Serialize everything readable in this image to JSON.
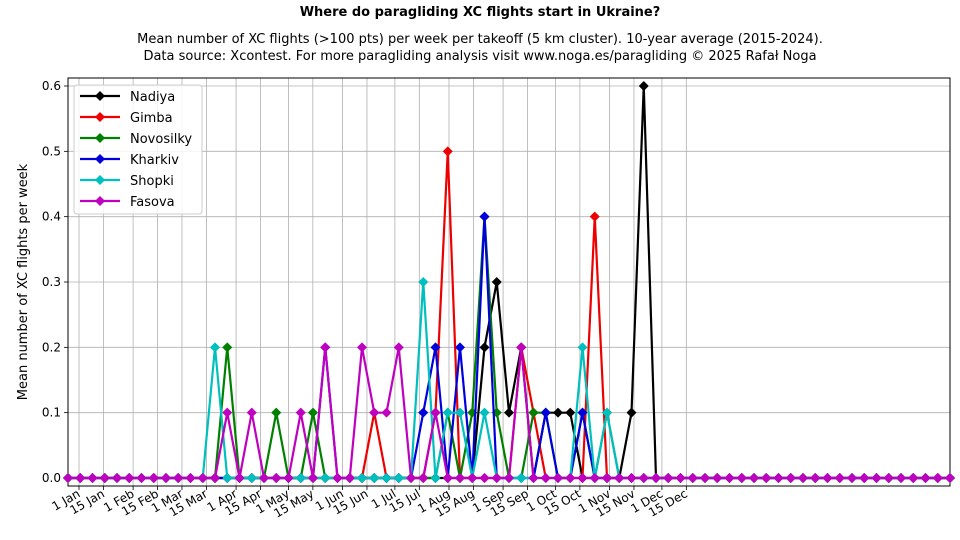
{
  "chart_data": {
    "type": "line",
    "title": "Where do paragliding XC flights start in Ukraine?",
    "subtitle_lines": [
      "Mean number of XC flights (>100 pts) per week per takeoff (5 km cluster). 10-year average (2015-2024).",
      "Data source: Xcontest. For more paragliding analysis visit www.noga.es/paragliding © 2025 Rafał Noga"
    ],
    "xlabel": "",
    "ylabel": "Mean number of XC flights per week",
    "x_tick_labels": [
      "1 Jan",
      "15 Jan",
      "1 Feb",
      "15 Feb",
      "1 Mar",
      "15 Mar",
      "1 Apr",
      "15 Apr",
      "1 May",
      "15 May",
      "1 Jun",
      "15 Jun",
      "1 Jul",
      "15 Jul",
      "1 Aug",
      "15 Aug",
      "1 Sep",
      "15 Sep",
      "1 Oct",
      "15 Oct",
      "1 Nov",
      "15 Nov",
      "1 Dec",
      "15 Dec"
    ],
    "y_tick_labels": [
      "0.0",
      "0.1",
      "0.2",
      "0.3",
      "0.4",
      "0.5",
      "0.6"
    ],
    "ylim": [
      0,
      0.6
    ],
    "grid": true,
    "legend_position": "top-left",
    "series": [
      {
        "name": "Nadiya",
        "color": "#000000",
        "values": [
          0,
          0,
          0,
          0,
          0,
          0,
          0,
          0,
          0,
          0,
          0,
          0,
          0,
          0,
          0,
          0,
          0,
          0,
          0,
          0,
          0,
          0,
          0,
          0,
          0,
          0,
          0,
          0,
          0,
          0,
          0,
          0,
          0,
          0,
          0.2,
          0.3,
          0.1,
          0.2,
          0,
          0.1,
          0.1,
          0.1,
          0,
          0,
          0,
          0,
          0.1,
          0.6,
          0,
          0,
          0,
          0,
          0,
          0,
          0,
          0,
          0,
          0,
          0,
          0,
          0,
          0,
          0,
          0,
          0,
          0,
          0,
          0,
          0,
          0,
          0,
          0,
          0
        ]
      },
      {
        "name": "Gimba",
        "color": "#ee0000",
        "values": [
          0,
          0,
          0,
          0,
          0,
          0,
          0,
          0,
          0,
          0,
          0,
          0,
          0,
          0,
          0,
          0,
          0,
          0,
          0,
          0,
          0,
          0,
          0,
          0,
          0,
          0.1,
          0,
          0,
          0,
          0,
          0.1,
          0.5,
          0,
          0,
          0,
          0,
          0,
          0.2,
          0.1,
          0,
          0,
          0,
          0,
          0.4,
          0,
          0,
          0,
          0,
          0,
          0,
          0,
          0,
          0,
          0,
          0,
          0,
          0,
          0,
          0,
          0,
          0,
          0,
          0,
          0,
          0,
          0,
          0,
          0,
          0,
          0,
          0,
          0,
          0
        ]
      },
      {
        "name": "Novosilky",
        "color": "#008000",
        "values": [
          0,
          0,
          0,
          0,
          0,
          0,
          0,
          0,
          0,
          0,
          0,
          0,
          0,
          0.2,
          0,
          0,
          0,
          0.1,
          0,
          0,
          0.1,
          0,
          0,
          0,
          0,
          0,
          0,
          0,
          0,
          0,
          0,
          0.1,
          0,
          0.1,
          0.4,
          0.1,
          0,
          0,
          0.1,
          0.1,
          0,
          0,
          0.1,
          0,
          0.1,
          0,
          0,
          0,
          0,
          0,
          0,
          0,
          0,
          0,
          0,
          0,
          0,
          0,
          0,
          0,
          0,
          0,
          0,
          0,
          0,
          0,
          0,
          0,
          0,
          0,
          0,
          0,
          0
        ]
      },
      {
        "name": "Kharkiv",
        "color": "#0000dd",
        "values": [
          0,
          0,
          0,
          0,
          0,
          0,
          0,
          0,
          0,
          0,
          0,
          0,
          0,
          0,
          0,
          0,
          0,
          0,
          0,
          0,
          0,
          0.2,
          0,
          0,
          0,
          0,
          0,
          0,
          0,
          0.1,
          0.2,
          0,
          0.2,
          0,
          0.4,
          0,
          0,
          0,
          0,
          0.1,
          0,
          0,
          0.1,
          0,
          0,
          0,
          0,
          0,
          0,
          0,
          0,
          0,
          0,
          0,
          0,
          0,
          0,
          0,
          0,
          0,
          0,
          0,
          0,
          0,
          0,
          0,
          0,
          0,
          0,
          0,
          0,
          0,
          0
        ]
      },
      {
        "name": "Shopki",
        "color": "#00bfbf",
        "values": [
          0,
          0,
          0,
          0,
          0,
          0,
          0,
          0,
          0,
          0,
          0,
          0,
          0.2,
          0,
          0,
          0,
          0,
          0,
          0,
          0,
          0,
          0,
          0,
          0,
          0,
          0,
          0,
          0,
          0,
          0.3,
          0,
          0.1,
          0.1,
          0,
          0.1,
          0,
          0,
          0,
          0,
          0,
          0,
          0,
          0.2,
          0,
          0.1,
          0,
          0,
          0,
          0,
          0,
          0,
          0,
          0,
          0,
          0,
          0,
          0,
          0,
          0,
          0,
          0,
          0,
          0,
          0,
          0,
          0,
          0,
          0,
          0,
          0,
          0,
          0,
          0
        ]
      },
      {
        "name": "Fasova",
        "color": "#bf00bf",
        "values": [
          0,
          0,
          0,
          0,
          0,
          0,
          0,
          0,
          0,
          0,
          0,
          0,
          0,
          0.1,
          0,
          0.1,
          0,
          0,
          0,
          0.1,
          0,
          0.2,
          0,
          0,
          0.2,
          0.1,
          0.1,
          0.2,
          0,
          0,
          0.1,
          0,
          0,
          0,
          0,
          0,
          0,
          0.2,
          0,
          0,
          0,
          0,
          0,
          0,
          0,
          0,
          0,
          0,
          0,
          0,
          0,
          0,
          0,
          0,
          0,
          0,
          0,
          0,
          0,
          0,
          0,
          0,
          0,
          0,
          0,
          0,
          0,
          0,
          0,
          0,
          0,
          0,
          0
        ]
      }
    ]
  }
}
